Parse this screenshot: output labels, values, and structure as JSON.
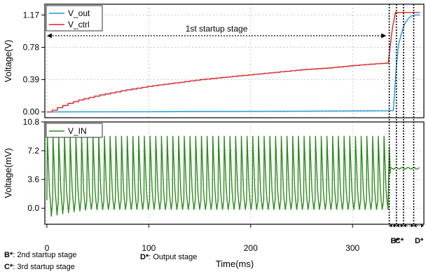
{
  "chart_data": [
    {
      "type": "line",
      "panel": "top",
      "ylabel": "Voltage(V)",
      "yticks": [
        "0.00",
        "0.39",
        "0.78",
        "1.17"
      ],
      "ylim": [
        -0.07,
        1.3
      ],
      "xlim": [
        -2,
        370
      ],
      "grid": true,
      "legend_position": "top-left",
      "series": [
        {
          "name": "V_out",
          "color": "#1f9ad6",
          "x": [
            0,
            100,
            200,
            300,
            335,
            340,
            343,
            345,
            348,
            350,
            352,
            355,
            358,
            362,
            366
          ],
          "y": [
            0.0,
            0.003,
            0.007,
            0.012,
            0.015,
            0.018,
            0.55,
            0.8,
            0.95,
            1.03,
            1.08,
            1.13,
            1.16,
            1.17,
            1.17
          ]
        },
        {
          "name": "V_ctrl",
          "color": "#d62728",
          "style": "staircase",
          "x": [
            0,
            5,
            10,
            20,
            30,
            50,
            75,
            100,
            125,
            150,
            175,
            200,
            225,
            250,
            275,
            300,
            320,
            335,
            336,
            339,
            342,
            345,
            366
          ],
          "y": [
            0.0,
            0.02,
            0.05,
            0.1,
            0.14,
            0.2,
            0.26,
            0.31,
            0.35,
            0.39,
            0.42,
            0.45,
            0.48,
            0.51,
            0.53,
            0.56,
            0.58,
            0.59,
            0.7,
            1.0,
            1.2,
            1.2,
            1.2
          ]
        }
      ],
      "annotations": [
        {
          "text": "1st startup stage",
          "x_from": 0,
          "x_to": 333
        }
      ]
    },
    {
      "type": "line",
      "panel": "bottom",
      "ylabel": "Voltage(mV)",
      "yticks": [
        "0.0",
        "3.6",
        "7.2",
        "10.8"
      ],
      "ylim": [
        -2.0,
        10.8
      ],
      "xlim": [
        -2,
        370
      ],
      "grid": true,
      "legend_position": "top-left",
      "series": [
        {
          "name": "V_IN",
          "color": "#2e8b1e",
          "signal": {
            "oscillation_range": [
              0.0,
              9.0
            ],
            "period_ms": 5.6,
            "x_start": 0,
            "x_end": 336,
            "settled_value": 5.0,
            "settle_start": 337,
            "settle_end": 366
          }
        }
      ]
    }
  ],
  "xaxis": {
    "label": "Time(ms)",
    "ticks": [
      0,
      100,
      200,
      300
    ]
  },
  "stage_markers": {
    "x_lines": [
      336,
      343,
      350,
      360
    ],
    "labels": [
      "B*",
      "C*",
      "D*"
    ]
  },
  "footnotes": {
    "b": {
      "key": "B*",
      "text": ": 2nd startup stage"
    },
    "c": {
      "key": "C*",
      "text": ": 3rd startup stage"
    },
    "d": {
      "key": "D*",
      "text": ": Output stage"
    }
  }
}
